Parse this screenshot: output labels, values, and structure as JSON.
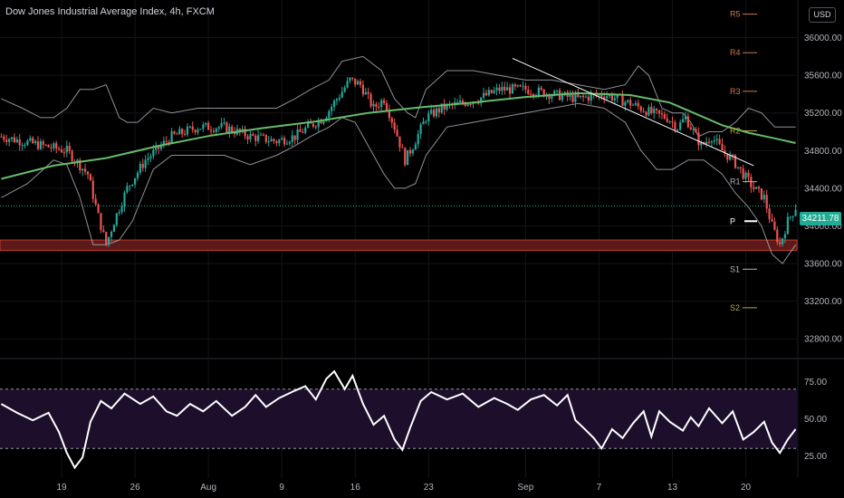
{
  "header": {
    "title": "Dow Jones Industrial Average Index, 4h, FXCM",
    "currency": "USD"
  },
  "last_price": "34211.78",
  "colors": {
    "up": "#26a69a",
    "down": "#ef5350",
    "ema": "#66bb6a",
    "bands": "#b2b5be",
    "support_zone": "#5d1a1a",
    "rsi_line": "#ffffff",
    "rsi_band": "#1d0f2c"
  },
  "chart_data": [
    {
      "type": "candlestick",
      "title": "Dow Jones Industrial Average Index, 4h, FXCM",
      "x_ticks": [
        "19",
        "26",
        "Aug",
        "9",
        "16",
        "23",
        "Sep",
        "7",
        "13",
        "20"
      ],
      "y_ticks": [
        32800,
        33200,
        33600,
        34000,
        34400,
        34800,
        35200,
        35600,
        36000
      ],
      "ylim": [
        32600,
        36400
      ],
      "grid": true,
      "close_path": [
        [
          0,
          34950
        ],
        [
          8,
          34900
        ],
        [
          16,
          34850
        ],
        [
          25,
          34800
        ],
        [
          33,
          34550
        ],
        [
          37,
          34100
        ],
        [
          40,
          33800
        ],
        [
          43,
          34050
        ],
        [
          48,
          34400
        ],
        [
          55,
          34700
        ],
        [
          65,
          34950
        ],
        [
          75,
          35050
        ],
        [
          85,
          35050
        ],
        [
          95,
          34950
        ],
        [
          105,
          34900
        ],
        [
          112,
          34950
        ],
        [
          117,
          35050
        ],
        [
          123,
          35150
        ],
        [
          128,
          35350
        ],
        [
          133,
          35550
        ],
        [
          137,
          35500
        ],
        [
          142,
          35250
        ],
        [
          146,
          35350
        ],
        [
          150,
          35050
        ],
        [
          154,
          34700
        ],
        [
          157,
          34850
        ],
        [
          162,
          35150
        ],
        [
          168,
          35250
        ],
        [
          175,
          35300
        ],
        [
          182,
          35350
        ],
        [
          190,
          35450
        ],
        [
          200,
          35450
        ],
        [
          210,
          35400
        ],
        [
          220,
          35350
        ],
        [
          230,
          35400
        ],
        [
          240,
          35300
        ],
        [
          248,
          35200
        ],
        [
          254,
          35150
        ],
        [
          258,
          35050
        ],
        [
          261,
          35150
        ],
        [
          264,
          35000
        ],
        [
          267,
          34850
        ],
        [
          271,
          34950
        ],
        [
          275,
          34800
        ],
        [
          279,
          34700
        ],
        [
          283,
          34550
        ],
        [
          287,
          34400
        ],
        [
          291,
          34300
        ],
        [
          294,
          34000
        ],
        [
          297,
          33800
        ],
        [
          300,
          34050
        ],
        [
          303,
          34200
        ]
      ],
      "ema": [
        [
          0,
          34500
        ],
        [
          20,
          34640
        ],
        [
          40,
          34720
        ],
        [
          60,
          34850
        ],
        [
          80,
          34960
        ],
        [
          100,
          35040
        ],
        [
          120,
          35110
        ],
        [
          140,
          35200
        ],
        [
          160,
          35260
        ],
        [
          180,
          35310
        ],
        [
          200,
          35370
        ],
        [
          220,
          35410
        ],
        [
          240,
          35390
        ],
        [
          255,
          35310
        ],
        [
          265,
          35190
        ],
        [
          275,
          35070
        ],
        [
          285,
          34990
        ],
        [
          295,
          34930
        ],
        [
          303,
          34880
        ]
      ],
      "bb_upper": [
        [
          0,
          35350
        ],
        [
          8,
          35250
        ],
        [
          15,
          35150
        ],
        [
          20,
          35150
        ],
        [
          25,
          35250
        ],
        [
          30,
          35450
        ],
        [
          35,
          35450
        ],
        [
          40,
          35500
        ],
        [
          45,
          35150
        ],
        [
          48,
          35100
        ],
        [
          52,
          35100
        ],
        [
          58,
          35250
        ],
        [
          65,
          35200
        ],
        [
          75,
          35250
        ],
        [
          85,
          35250
        ],
        [
          95,
          35250
        ],
        [
          105,
          35250
        ],
        [
          112,
          35350
        ],
        [
          118,
          35450
        ],
        [
          125,
          35550
        ],
        [
          130,
          35750
        ],
        [
          138,
          35800
        ],
        [
          145,
          35650
        ],
        [
          150,
          35350
        ],
        [
          155,
          35200
        ],
        [
          158,
          35150
        ],
        [
          162,
          35450
        ],
        [
          170,
          35650
        ],
        [
          180,
          35650
        ],
        [
          190,
          35600
        ],
        [
          200,
          35550
        ],
        [
          210,
          35550
        ],
        [
          220,
          35500
        ],
        [
          230,
          35450
        ],
        [
          238,
          35500
        ],
        [
          243,
          35700
        ],
        [
          247,
          35600
        ],
        [
          252,
          35250
        ],
        [
          256,
          35200
        ],
        [
          260,
          35200
        ],
        [
          263,
          35100
        ],
        [
          266,
          34950
        ],
        [
          270,
          35000
        ],
        [
          275,
          35000
        ],
        [
          280,
          35100
        ],
        [
          285,
          35250
        ],
        [
          290,
          35200
        ],
        [
          295,
          35050
        ],
        [
          303,
          35050
        ]
      ],
      "bb_lower": [
        [
          0,
          34300
        ],
        [
          10,
          34450
        ],
        [
          20,
          34700
        ],
        [
          25,
          34650
        ],
        [
          30,
          34300
        ],
        [
          35,
          33800
        ],
        [
          40,
          33800
        ],
        [
          45,
          33850
        ],
        [
          50,
          34050
        ],
        [
          58,
          34600
        ],
        [
          65,
          34750
        ],
        [
          75,
          34750
        ],
        [
          85,
          34750
        ],
        [
          95,
          34650
        ],
        [
          105,
          34750
        ],
        [
          112,
          34850
        ],
        [
          118,
          34950
        ],
        [
          125,
          35050
        ],
        [
          130,
          35150
        ],
        [
          135,
          35100
        ],
        [
          140,
          34850
        ],
        [
          146,
          34550
        ],
        [
          150,
          34400
        ],
        [
          154,
          34400
        ],
        [
          158,
          34450
        ],
        [
          162,
          34750
        ],
        [
          170,
          35050
        ],
        [
          180,
          35100
        ],
        [
          190,
          35150
        ],
        [
          200,
          35200
        ],
        [
          210,
          35250
        ],
        [
          220,
          35300
        ],
        [
          230,
          35250
        ],
        [
          238,
          35100
        ],
        [
          244,
          34800
        ],
        [
          250,
          34600
        ],
        [
          256,
          34600
        ],
        [
          262,
          34700
        ],
        [
          268,
          34700
        ],
        [
          275,
          34550
        ],
        [
          280,
          34350
        ],
        [
          285,
          34200
        ],
        [
          290,
          34000
        ],
        [
          294,
          33700
        ],
        [
          298,
          33600
        ],
        [
          303,
          33800
        ]
      ],
      "trendline": [
        [
          195,
          35780
        ],
        [
          287,
          34640
        ]
      ],
      "support_zone": [
        33740,
        33850
      ],
      "pivot_levels": [
        {
          "label": "R5",
          "value": 36250,
          "color": "#c77a52"
        },
        {
          "label": "R4",
          "value": 35840,
          "color": "#c77a52"
        },
        {
          "label": "R3",
          "value": 35430,
          "color": "#c77a52"
        },
        {
          "label": "R2",
          "value": 35010,
          "color": "#b5a642"
        },
        {
          "label": "R1",
          "value": 34470,
          "color": "#b2b5be"
        },
        {
          "label": "P",
          "value": 34050,
          "color": "#ffffff"
        },
        {
          "label": "S1",
          "value": 33540,
          "color": "#b2b5be"
        },
        {
          "label": "S2",
          "value": 33130,
          "color": "#b5a642"
        }
      ]
    },
    {
      "type": "line",
      "y_ticks": [
        25,
        50,
        75
      ],
      "bands": [
        30,
        70
      ],
      "ylim": [
        10,
        90
      ],
      "rsi": [
        [
          0,
          60
        ],
        [
          6,
          54
        ],
        [
          12,
          49
        ],
        [
          18,
          54
        ],
        [
          22,
          41
        ],
        [
          25,
          27
        ],
        [
          28,
          17
        ],
        [
          31,
          24
        ],
        [
          34,
          48
        ],
        [
          38,
          62
        ],
        [
          42,
          57
        ],
        [
          47,
          67
        ],
        [
          53,
          60
        ],
        [
          58,
          65
        ],
        [
          63,
          55
        ],
        [
          67,
          52
        ],
        [
          72,
          60
        ],
        [
          77,
          55
        ],
        [
          82,
          62
        ],
        [
          88,
          52
        ],
        [
          93,
          58
        ],
        [
          97,
          66
        ],
        [
          101,
          58
        ],
        [
          106,
          64
        ],
        [
          112,
          69
        ],
        [
          116,
          72
        ],
        [
          120,
          63
        ],
        [
          124,
          77
        ],
        [
          127,
          82
        ],
        [
          131,
          70
        ],
        [
          134,
          79
        ],
        [
          138,
          60
        ],
        [
          142,
          46
        ],
        [
          146,
          52
        ],
        [
          150,
          36
        ],
        [
          153,
          29
        ],
        [
          156,
          44
        ],
        [
          160,
          62
        ],
        [
          164,
          68
        ],
        [
          170,
          63
        ],
        [
          176,
          67
        ],
        [
          182,
          58
        ],
        [
          188,
          64
        ],
        [
          193,
          60
        ],
        [
          197,
          56
        ],
        [
          202,
          63
        ],
        [
          207,
          66
        ],
        [
          212,
          59
        ],
        [
          216,
          66
        ],
        [
          219,
          49
        ],
        [
          222,
          44
        ],
        [
          226,
          37
        ],
        [
          229,
          30
        ],
        [
          233,
          43
        ],
        [
          237,
          37
        ],
        [
          241,
          47
        ],
        [
          245,
          55
        ],
        [
          248,
          38
        ],
        [
          251,
          55
        ],
        [
          255,
          48
        ],
        [
          260,
          42
        ],
        [
          263,
          51
        ],
        [
          266,
          45
        ],
        [
          270,
          57
        ],
        [
          275,
          47
        ],
        [
          279,
          55
        ],
        [
          283,
          36
        ],
        [
          287,
          41
        ],
        [
          291,
          48
        ],
        [
          294,
          34
        ],
        [
          297,
          27
        ],
        [
          300,
          36
        ],
        [
          303,
          43
        ]
      ]
    }
  ]
}
